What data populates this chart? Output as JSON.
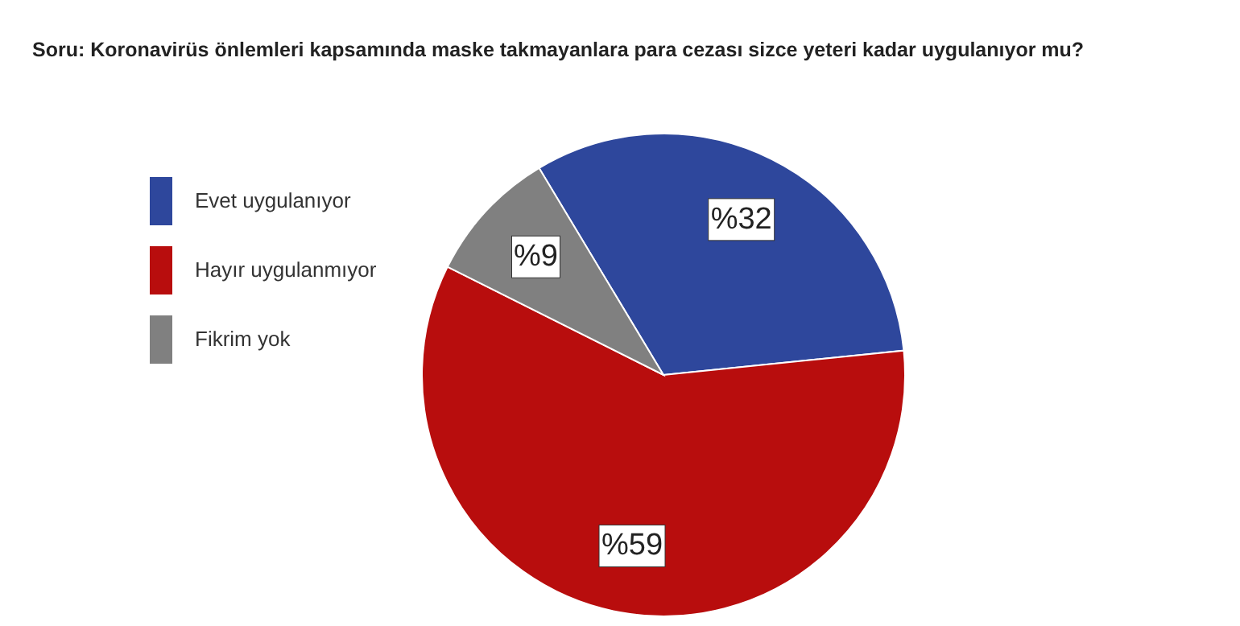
{
  "chart_data": {
    "type": "pie",
    "title": "Soru: Koronavirüs önlemleri kapsamında maske takmayanlara para cezası sizce yeteri kadar uygulanıyor mu?",
    "categories": [
      "Evet uygulanıyor",
      "Hayır uygulanmıyor",
      "Fikrim yok"
    ],
    "values": [
      32,
      59,
      9
    ],
    "colors": [
      "#2e479c",
      "#b80d0d",
      "#808080"
    ],
    "value_labels": [
      "%32",
      "%59",
      "%9"
    ],
    "legend": "left"
  }
}
